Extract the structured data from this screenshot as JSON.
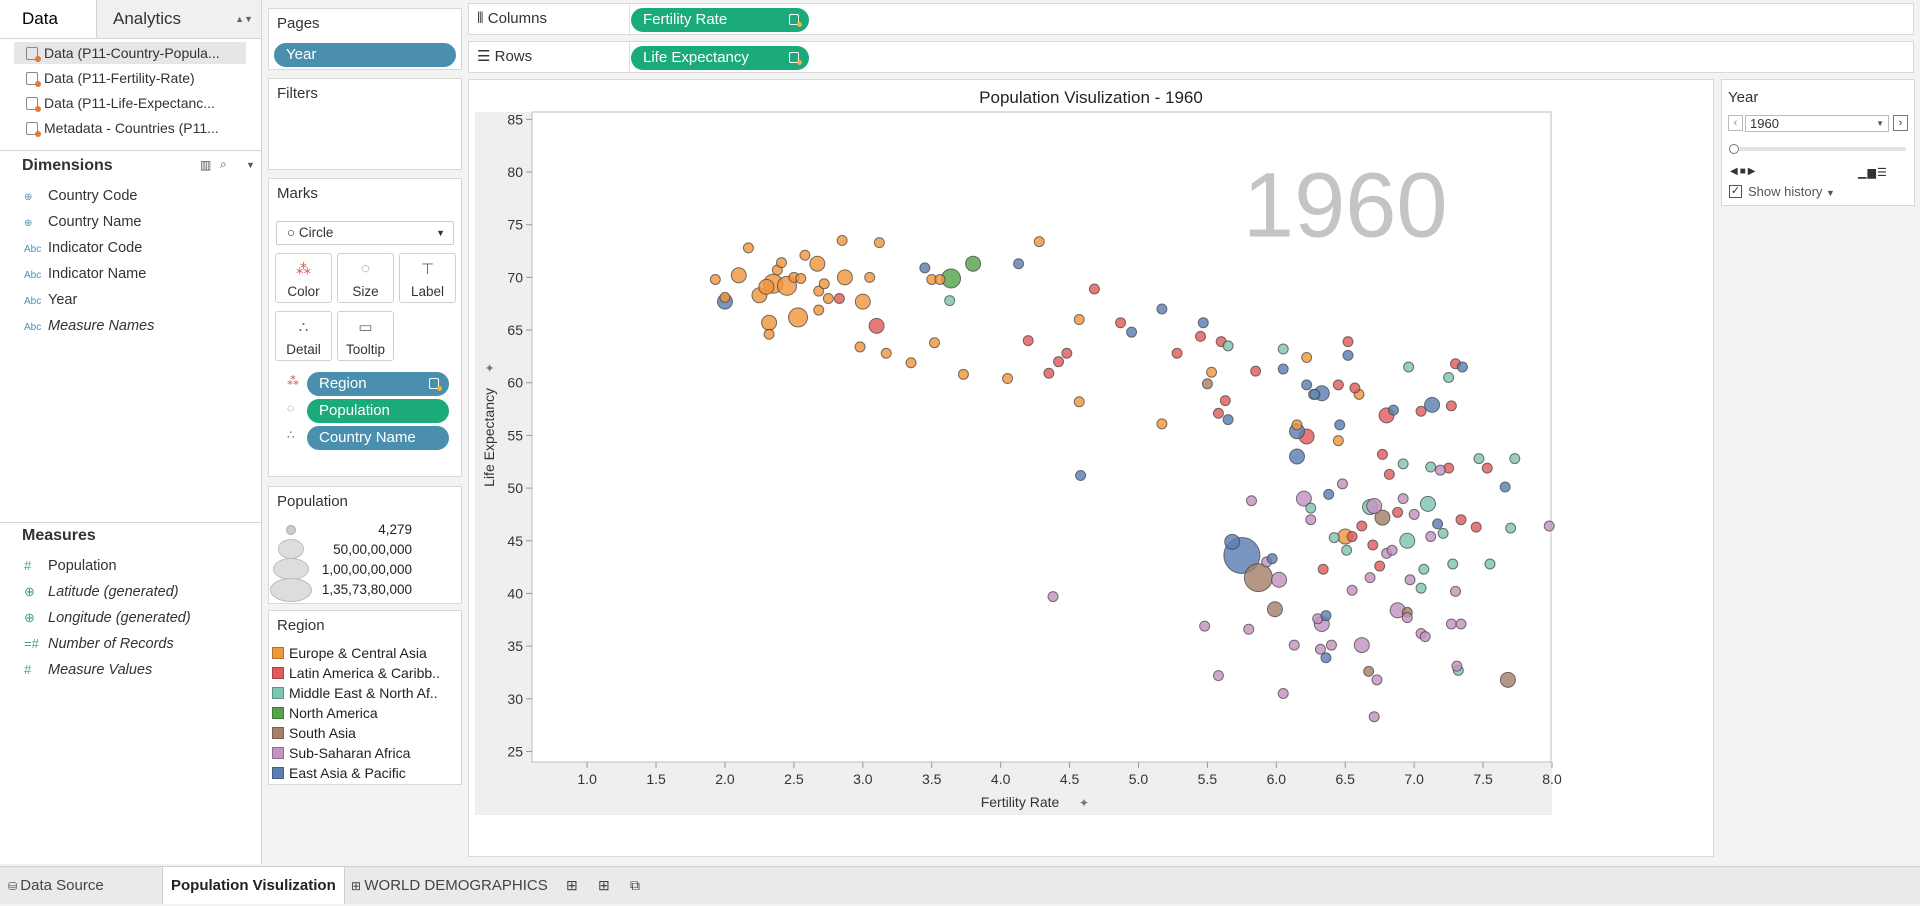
{
  "left_pane": {
    "tabs": {
      "data": "Data",
      "analytics": "Analytics"
    },
    "datasources": [
      "Data (P11-Country-Popula...",
      "Data (P11-Fertility-Rate)",
      "Data (P11-Life-Expectanc...",
      "Metadata - Countries (P11..."
    ],
    "dimensions_title": "Dimensions",
    "dimensions": [
      {
        "icon": "globe",
        "label": "Country Code"
      },
      {
        "icon": "globe",
        "label": "Country Name"
      },
      {
        "icon": "Abc",
        "label": "Indicator Code"
      },
      {
        "icon": "Abc",
        "label": "Indicator Name"
      },
      {
        "icon": "Abc",
        "label": "Year"
      },
      {
        "icon": "Abc",
        "label": "Measure Names"
      }
    ],
    "measures_title": "Measures",
    "measures": [
      {
        "icon": "#",
        "label": "Population"
      },
      {
        "icon": "globe",
        "label": "Latitude (generated)"
      },
      {
        "icon": "globe",
        "label": "Longitude (generated)"
      },
      {
        "icon": "=#",
        "label": "Number of Records"
      },
      {
        "icon": "#",
        "label": "Measure Values"
      }
    ]
  },
  "pages": {
    "title": "Pages",
    "pill": "Year"
  },
  "filters": {
    "title": "Filters"
  },
  "marks": {
    "title": "Marks",
    "type": "Circle",
    "buttons": {
      "color": "Color",
      "size": "Size",
      "label": "Label",
      "detail": "Detail",
      "tooltip": "Tooltip"
    },
    "pills": [
      "Region",
      "Population",
      "Country Name"
    ]
  },
  "size_legend": {
    "title": "Population",
    "items": [
      "4,279",
      "50,00,00,000",
      "1,00,00,00,000",
      "1,35,73,80,000"
    ]
  },
  "region_legend": {
    "title": "Region",
    "items": [
      {
        "label": "Europe & Central Asia",
        "color": "#f0963c"
      },
      {
        "label": "Latin America & Caribb..",
        "color": "#e05c5c"
      },
      {
        "label": "Middle East & North Af..",
        "color": "#7fc5b3"
      },
      {
        "label": "North America",
        "color": "#56a34a"
      },
      {
        "label": "South Asia",
        "color": "#a5806a"
      },
      {
        "label": "Sub-Saharan Africa",
        "color": "#c493c0"
      },
      {
        "label": "East Asia & Pacific",
        "color": "#5b7fb3"
      }
    ]
  },
  "shelves": {
    "columns_label": "Columns",
    "columns_pill": "Fertility Rate",
    "rows_label": "Rows",
    "rows_pill": "Life Expectancy"
  },
  "year_control": {
    "title": "Year",
    "value": "1960",
    "show_history": "Show history"
  },
  "bottom_tabs": {
    "data_source": "Data Source",
    "sheet": "Population Visulization",
    "dashboard": "WORLD DEMOGRAPHICS"
  },
  "chart_data": {
    "type": "scatter",
    "title": "Population Visulization - 1960",
    "watermark": "1960",
    "xlabel": "Fertility Rate",
    "ylabel": "Life Expectancy",
    "xlim": [
      0.6,
      8.0
    ],
    "ylim": [
      24.0,
      85.7
    ],
    "xticks": [
      "1.0",
      "1.5",
      "2.0",
      "2.5",
      "3.0",
      "3.5",
      "4.0",
      "4.5",
      "5.0",
      "5.5",
      "6.0",
      "6.5",
      "7.0",
      "7.5",
      "8.0"
    ],
    "yticks": [
      "25",
      "30",
      "35",
      "40",
      "45",
      "50",
      "55",
      "60",
      "65",
      "70",
      "75",
      "80",
      "85"
    ],
    "regions": [
      "Europe & Central Asia",
      "Latin America & Caribb..",
      "Middle East & North Af..",
      "North America",
      "South Asia",
      "Sub-Saharan Africa",
      "East Asia & Pacific"
    ],
    "points": [
      {
        "x": 1.93,
        "y": 69.8,
        "r": 0,
        "s": 1
      },
      {
        "x": 2.0,
        "y": 68.1,
        "r": 0,
        "s": 1
      },
      {
        "x": 2.1,
        "y": 70.2,
        "r": 0,
        "s": 2
      },
      {
        "x": 2.17,
        "y": 72.8,
        "r": 0,
        "s": 1
      },
      {
        "x": 2.25,
        "y": 68.3,
        "r": 0,
        "s": 2
      },
      {
        "x": 2.3,
        "y": 69.1,
        "r": 0,
        "s": 2
      },
      {
        "x": 2.35,
        "y": 69.4,
        "r": 0,
        "s": 3
      },
      {
        "x": 2.38,
        "y": 70.7,
        "r": 0,
        "s": 1
      },
      {
        "x": 2.41,
        "y": 71.4,
        "r": 0,
        "s": 1
      },
      {
        "x": 2.45,
        "y": 69.2,
        "r": 0,
        "s": 3
      },
      {
        "x": 2.5,
        "y": 70.0,
        "r": 0,
        "s": 1
      },
      {
        "x": 2.55,
        "y": 69.9,
        "r": 0,
        "s": 1
      },
      {
        "x": 2.58,
        "y": 72.1,
        "r": 0,
        "s": 1
      },
      {
        "x": 2.67,
        "y": 71.3,
        "r": 0,
        "s": 2
      },
      {
        "x": 2.68,
        "y": 68.7,
        "r": 0,
        "s": 1
      },
      {
        "x": 2.72,
        "y": 69.4,
        "r": 0,
        "s": 1
      },
      {
        "x": 2.75,
        "y": 68.0,
        "r": 0,
        "s": 1
      },
      {
        "x": 2.85,
        "y": 73.5,
        "r": 0,
        "s": 1
      },
      {
        "x": 2.87,
        "y": 70.0,
        "r": 0,
        "s": 2
      },
      {
        "x": 3.0,
        "y": 67.7,
        "r": 0,
        "s": 2
      },
      {
        "x": 3.05,
        "y": 70.0,
        "r": 0,
        "s": 1
      },
      {
        "x": 3.12,
        "y": 73.3,
        "r": 0,
        "s": 1
      },
      {
        "x": 2.32,
        "y": 65.7,
        "r": 0,
        "s": 2
      },
      {
        "x": 2.32,
        "y": 64.6,
        "r": 0,
        "s": 1
      },
      {
        "x": 2.53,
        "y": 66.2,
        "r": 0,
        "s": 3
      },
      {
        "x": 2.68,
        "y": 66.9,
        "r": 0,
        "s": 1
      },
      {
        "x": 2.98,
        "y": 63.4,
        "r": 0,
        "s": 1
      },
      {
        "x": 3.17,
        "y": 62.8,
        "r": 0,
        "s": 1
      },
      {
        "x": 3.35,
        "y": 61.9,
        "r": 0,
        "s": 1
      },
      {
        "x": 3.52,
        "y": 63.8,
        "r": 0,
        "s": 1
      },
      {
        "x": 3.5,
        "y": 69.8,
        "r": 0,
        "s": 1
      },
      {
        "x": 3.56,
        "y": 69.8,
        "r": 0,
        "s": 1
      },
      {
        "x": 3.73,
        "y": 60.8,
        "r": 0,
        "s": 1
      },
      {
        "x": 4.05,
        "y": 60.4,
        "r": 0,
        "s": 1
      },
      {
        "x": 4.28,
        "y": 73.4,
        "r": 0,
        "s": 1
      },
      {
        "x": 4.57,
        "y": 66.0,
        "r": 0,
        "s": 1
      },
      {
        "x": 4.57,
        "y": 58.2,
        "r": 0,
        "s": 1
      },
      {
        "x": 5.17,
        "y": 56.1,
        "r": 0,
        "s": 1
      },
      {
        "x": 5.53,
        "y": 61.0,
        "r": 0,
        "s": 1
      },
      {
        "x": 6.15,
        "y": 56.0,
        "r": 0,
        "s": 1
      },
      {
        "x": 6.22,
        "y": 62.4,
        "r": 0,
        "s": 1
      },
      {
        "x": 6.6,
        "y": 58.9,
        "r": 0,
        "s": 1
      },
      {
        "x": 6.45,
        "y": 54.5,
        "r": 0,
        "s": 1
      },
      {
        "x": 6.5,
        "y": 45.4,
        "r": 0,
        "s": 2
      },
      {
        "x": 2.83,
        "y": 68.0,
        "r": 1,
        "s": 1
      },
      {
        "x": 3.1,
        "y": 65.4,
        "r": 1,
        "s": 2
      },
      {
        "x": 4.2,
        "y": 64.0,
        "r": 1,
        "s": 1
      },
      {
        "x": 4.35,
        "y": 60.9,
        "r": 1,
        "s": 1
      },
      {
        "x": 4.42,
        "y": 62.0,
        "r": 1,
        "s": 1
      },
      {
        "x": 4.48,
        "y": 62.8,
        "r": 1,
        "s": 1
      },
      {
        "x": 4.68,
        "y": 68.9,
        "r": 1,
        "s": 1
      },
      {
        "x": 4.87,
        "y": 65.7,
        "r": 1,
        "s": 1
      },
      {
        "x": 5.28,
        "y": 62.8,
        "r": 1,
        "s": 1
      },
      {
        "x": 5.45,
        "y": 64.4,
        "r": 1,
        "s": 1
      },
      {
        "x": 5.58,
        "y": 57.1,
        "r": 1,
        "s": 1
      },
      {
        "x": 5.6,
        "y": 63.9,
        "r": 1,
        "s": 1
      },
      {
        "x": 5.63,
        "y": 58.3,
        "r": 1,
        "s": 1
      },
      {
        "x": 5.85,
        "y": 61.1,
        "r": 1,
        "s": 1
      },
      {
        "x": 6.22,
        "y": 54.9,
        "r": 1,
        "s": 2
      },
      {
        "x": 6.45,
        "y": 59.8,
        "r": 1,
        "s": 1
      },
      {
        "x": 6.52,
        "y": 63.9,
        "r": 1,
        "s": 1
      },
      {
        "x": 6.57,
        "y": 59.5,
        "r": 1,
        "s": 1
      },
      {
        "x": 6.8,
        "y": 56.9,
        "r": 1,
        "s": 2
      },
      {
        "x": 6.82,
        "y": 51.3,
        "r": 1,
        "s": 1
      },
      {
        "x": 6.77,
        "y": 53.2,
        "r": 1,
        "s": 1
      },
      {
        "x": 7.05,
        "y": 57.3,
        "r": 1,
        "s": 1
      },
      {
        "x": 7.27,
        "y": 57.8,
        "r": 1,
        "s": 1
      },
      {
        "x": 7.3,
        "y": 61.8,
        "r": 1,
        "s": 1
      },
      {
        "x": 7.25,
        "y": 51.9,
        "r": 1,
        "s": 1
      },
      {
        "x": 7.34,
        "y": 47.0,
        "r": 1,
        "s": 1
      },
      {
        "x": 7.45,
        "y": 46.3,
        "r": 1,
        "s": 1
      },
      {
        "x": 7.53,
        "y": 51.9,
        "r": 1,
        "s": 1
      },
      {
        "x": 6.55,
        "y": 45.4,
        "r": 1,
        "s": 1
      },
      {
        "x": 6.62,
        "y": 46.4,
        "r": 1,
        "s": 1
      },
      {
        "x": 6.7,
        "y": 44.6,
        "r": 1,
        "s": 1
      },
      {
        "x": 6.75,
        "y": 42.6,
        "r": 1,
        "s": 1
      },
      {
        "x": 6.88,
        "y": 47.7,
        "r": 1,
        "s": 1
      },
      {
        "x": 6.34,
        "y": 42.3,
        "r": 1,
        "s": 1
      },
      {
        "x": 3.63,
        "y": 67.8,
        "r": 2,
        "s": 1
      },
      {
        "x": 5.65,
        "y": 63.5,
        "r": 2,
        "s": 1
      },
      {
        "x": 6.05,
        "y": 63.2,
        "r": 2,
        "s": 1
      },
      {
        "x": 6.25,
        "y": 48.1,
        "r": 2,
        "s": 1
      },
      {
        "x": 6.27,
        "y": 58.9,
        "r": 2,
        "s": 1
      },
      {
        "x": 6.42,
        "y": 45.3,
        "r": 2,
        "s": 1
      },
      {
        "x": 6.51,
        "y": 44.1,
        "r": 2,
        "s": 1
      },
      {
        "x": 6.68,
        "y": 48.2,
        "r": 2,
        "s": 2
      },
      {
        "x": 6.92,
        "y": 52.3,
        "r": 2,
        "s": 1
      },
      {
        "x": 6.95,
        "y": 45.0,
        "r": 2,
        "s": 2
      },
      {
        "x": 6.96,
        "y": 61.5,
        "r": 2,
        "s": 1
      },
      {
        "x": 7.1,
        "y": 48.5,
        "r": 2,
        "s": 2
      },
      {
        "x": 7.12,
        "y": 52.0,
        "r": 2,
        "s": 1
      },
      {
        "x": 7.21,
        "y": 45.7,
        "r": 2,
        "s": 1
      },
      {
        "x": 7.25,
        "y": 60.5,
        "r": 2,
        "s": 1
      },
      {
        "x": 7.28,
        "y": 42.8,
        "r": 2,
        "s": 1
      },
      {
        "x": 7.32,
        "y": 32.7,
        "r": 2,
        "s": 1
      },
      {
        "x": 7.47,
        "y": 52.8,
        "r": 2,
        "s": 1
      },
      {
        "x": 7.55,
        "y": 42.8,
        "r": 2,
        "s": 1
      },
      {
        "x": 7.7,
        "y": 46.2,
        "r": 2,
        "s": 1
      },
      {
        "x": 7.73,
        "y": 52.8,
        "r": 2,
        "s": 1
      },
      {
        "x": 7.05,
        "y": 40.5,
        "r": 2,
        "s": 1
      },
      {
        "x": 7.07,
        "y": 42.3,
        "r": 2,
        "s": 1
      },
      {
        "x": 3.64,
        "y": 69.9,
        "r": 3,
        "s": 3
      },
      {
        "x": 3.8,
        "y": 71.3,
        "r": 3,
        "s": 2
      },
      {
        "x": 5.5,
        "y": 59.9,
        "r": 4,
        "s": 1
      },
      {
        "x": 5.87,
        "y": 41.5,
        "r": 4,
        "s": 4
      },
      {
        "x": 5.99,
        "y": 38.5,
        "r": 4,
        "s": 2
      },
      {
        "x": 6.77,
        "y": 47.2,
        "r": 4,
        "s": 2
      },
      {
        "x": 6.67,
        "y": 32.6,
        "r": 4,
        "s": 1
      },
      {
        "x": 7.68,
        "y": 31.8,
        "r": 4,
        "s": 2
      },
      {
        "x": 6.95,
        "y": 38.2,
        "r": 4,
        "s": 1
      },
      {
        "x": 4.38,
        "y": 39.7,
        "r": 5,
        "s": 1
      },
      {
        "x": 5.48,
        "y": 36.9,
        "r": 5,
        "s": 1
      },
      {
        "x": 5.58,
        "y": 32.2,
        "r": 5,
        "s": 1
      },
      {
        "x": 5.8,
        "y": 36.6,
        "r": 5,
        "s": 1
      },
      {
        "x": 5.82,
        "y": 48.8,
        "r": 5,
        "s": 1
      },
      {
        "x": 5.93,
        "y": 43.0,
        "r": 5,
        "s": 1
      },
      {
        "x": 6.02,
        "y": 41.3,
        "r": 5,
        "s": 2
      },
      {
        "x": 6.05,
        "y": 30.5,
        "r": 5,
        "s": 1
      },
      {
        "x": 6.13,
        "y": 35.1,
        "r": 5,
        "s": 1
      },
      {
        "x": 6.2,
        "y": 49.0,
        "r": 5,
        "s": 2
      },
      {
        "x": 6.25,
        "y": 47.0,
        "r": 5,
        "s": 1
      },
      {
        "x": 6.3,
        "y": 37.6,
        "r": 5,
        "s": 1
      },
      {
        "x": 6.33,
        "y": 37.1,
        "r": 5,
        "s": 2
      },
      {
        "x": 6.32,
        "y": 34.7,
        "r": 5,
        "s": 1
      },
      {
        "x": 6.4,
        "y": 35.1,
        "r": 5,
        "s": 1
      },
      {
        "x": 6.48,
        "y": 50.4,
        "r": 5,
        "s": 1
      },
      {
        "x": 6.55,
        "y": 40.3,
        "r": 5,
        "s": 1
      },
      {
        "x": 6.62,
        "y": 35.1,
        "r": 5,
        "s": 2
      },
      {
        "x": 6.68,
        "y": 41.5,
        "r": 5,
        "s": 1
      },
      {
        "x": 6.71,
        "y": 48.3,
        "r": 5,
        "s": 2
      },
      {
        "x": 6.73,
        "y": 31.8,
        "r": 5,
        "s": 1
      },
      {
        "x": 6.71,
        "y": 28.3,
        "r": 5,
        "s": 1
      },
      {
        "x": 6.8,
        "y": 43.8,
        "r": 5,
        "s": 1
      },
      {
        "x": 6.84,
        "y": 44.1,
        "r": 5,
        "s": 1
      },
      {
        "x": 6.88,
        "y": 38.4,
        "r": 5,
        "s": 2
      },
      {
        "x": 6.92,
        "y": 49.0,
        "r": 5,
        "s": 1
      },
      {
        "x": 6.95,
        "y": 37.7,
        "r": 5,
        "s": 1
      },
      {
        "x": 6.97,
        "y": 41.3,
        "r": 5,
        "s": 1
      },
      {
        "x": 7.0,
        "y": 47.5,
        "r": 5,
        "s": 1
      },
      {
        "x": 7.05,
        "y": 36.2,
        "r": 5,
        "s": 1
      },
      {
        "x": 7.08,
        "y": 35.9,
        "r": 5,
        "s": 1
      },
      {
        "x": 7.12,
        "y": 45.4,
        "r": 5,
        "s": 1
      },
      {
        "x": 7.19,
        "y": 51.7,
        "r": 5,
        "s": 1
      },
      {
        "x": 7.27,
        "y": 37.1,
        "r": 5,
        "s": 1
      },
      {
        "x": 7.3,
        "y": 40.2,
        "r": 5,
        "s": 1
      },
      {
        "x": 7.31,
        "y": 33.1,
        "r": 5,
        "s": 1
      },
      {
        "x": 7.34,
        "y": 37.1,
        "r": 5,
        "s": 1
      },
      {
        "x": 7.98,
        "y": 46.4,
        "r": 5,
        "s": 1
      },
      {
        "x": 2.0,
        "y": 67.7,
        "r": 6,
        "s": 2
      },
      {
        "x": 3.45,
        "y": 70.9,
        "r": 6,
        "s": 1
      },
      {
        "x": 4.13,
        "y": 71.3,
        "r": 6,
        "s": 1
      },
      {
        "x": 4.58,
        "y": 51.2,
        "r": 6,
        "s": 1
      },
      {
        "x": 4.95,
        "y": 64.8,
        "r": 6,
        "s": 1
      },
      {
        "x": 5.17,
        "y": 67.0,
        "r": 6,
        "s": 1
      },
      {
        "x": 5.47,
        "y": 65.7,
        "r": 6,
        "s": 1
      },
      {
        "x": 5.65,
        "y": 56.5,
        "r": 6,
        "s": 1
      },
      {
        "x": 5.68,
        "y": 44.9,
        "r": 6,
        "s": 2
      },
      {
        "x": 5.75,
        "y": 43.6,
        "r": 6,
        "s": 5
      },
      {
        "x": 5.97,
        "y": 43.3,
        "r": 6,
        "s": 1
      },
      {
        "x": 6.05,
        "y": 61.3,
        "r": 6,
        "s": 1
      },
      {
        "x": 6.15,
        "y": 55.4,
        "r": 6,
        "s": 2
      },
      {
        "x": 6.15,
        "y": 53.0,
        "r": 6,
        "s": 2
      },
      {
        "x": 6.22,
        "y": 59.8,
        "r": 6,
        "s": 1
      },
      {
        "x": 6.28,
        "y": 58.9,
        "r": 6,
        "s": 1
      },
      {
        "x": 6.33,
        "y": 59.0,
        "r": 6,
        "s": 2
      },
      {
        "x": 6.36,
        "y": 37.9,
        "r": 6,
        "s": 1
      },
      {
        "x": 6.36,
        "y": 33.9,
        "r": 6,
        "s": 1
      },
      {
        "x": 6.38,
        "y": 49.4,
        "r": 6,
        "s": 1
      },
      {
        "x": 6.46,
        "y": 56.0,
        "r": 6,
        "s": 1
      },
      {
        "x": 6.52,
        "y": 62.6,
        "r": 6,
        "s": 1
      },
      {
        "x": 6.85,
        "y": 57.4,
        "r": 6,
        "s": 1
      },
      {
        "x": 7.13,
        "y": 57.9,
        "r": 6,
        "s": 2
      },
      {
        "x": 7.17,
        "y": 46.6,
        "r": 6,
        "s": 1
      },
      {
        "x": 7.35,
        "y": 61.5,
        "r": 6,
        "s": 1
      },
      {
        "x": 7.66,
        "y": 50.1,
        "r": 6,
        "s": 1
      }
    ]
  }
}
